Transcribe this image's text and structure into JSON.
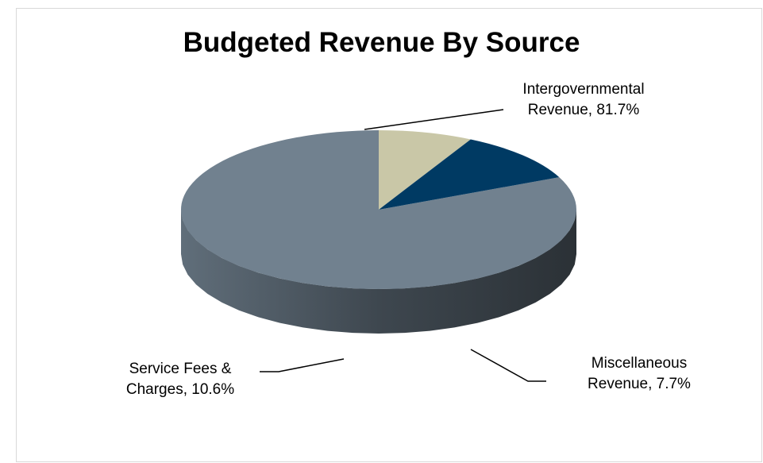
{
  "chart_data": {
    "type": "pie",
    "title": "Budgeted Revenue By Source",
    "slices": [
      {
        "label": "Intergovernmental Revenue",
        "value": 81.7,
        "display": [
          "Intergovernmental",
          "Revenue, 81.7%"
        ],
        "color": "#71818f"
      },
      {
        "label": "Miscellaneous Revenue",
        "value": 7.7,
        "display": [
          "Miscellaneous",
          "Revenue, 7.7%"
        ],
        "color": "#c9c7a7"
      },
      {
        "label": "Service Fees & Charges",
        "value": 10.6,
        "display": [
          "Service Fees &",
          "Charges, 10.6%"
        ],
        "color": "#003a63"
      }
    ],
    "style": "3d",
    "legend": "none"
  }
}
